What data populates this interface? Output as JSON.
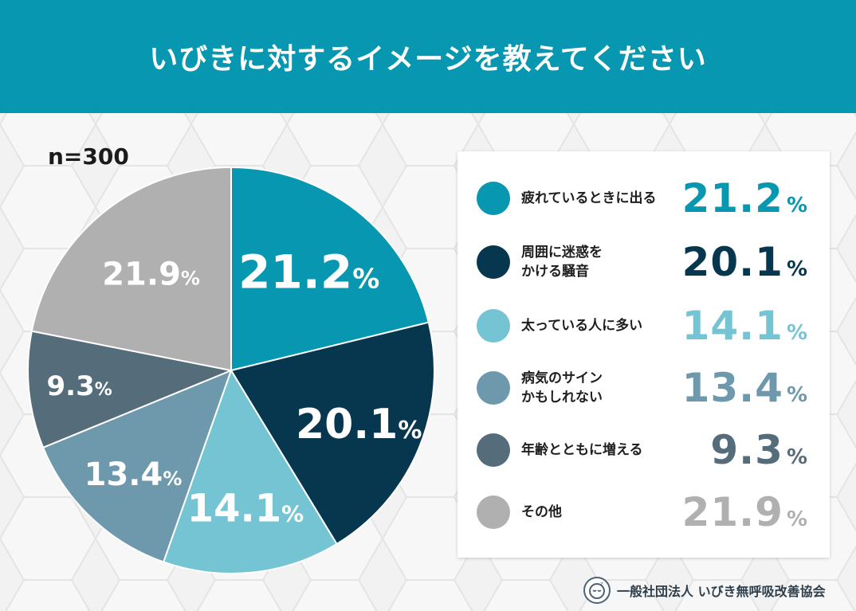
{
  "header": {
    "title": "いびきに対するイメージを教えてください"
  },
  "sample": {
    "label": "n=300"
  },
  "chart_data": {
    "type": "pie",
    "title": "いびきに対するイメージを教えてください",
    "unit": "%",
    "slices": [
      {
        "label": "疲れているときに出る",
        "value": 21.2,
        "color": "#0797b0",
        "label_color": "#0797b0"
      },
      {
        "label": "周囲に迷惑を\nかける騒音",
        "value": 20.1,
        "color": "#06374f",
        "label_color": "#06374f"
      },
      {
        "label": "太っている人に多い",
        "value": 14.1,
        "color": "#75c4d4",
        "label_color": "#75c4d4"
      },
      {
        "label": "病気のサイン\nかもしれない",
        "value": 13.4,
        "color": "#6e99ad",
        "label_color": "#6e99ad"
      },
      {
        "label": "年齢とともに増える",
        "value": 9.3,
        "color": "#556c7b",
        "label_color": "#556c7b"
      },
      {
        "label": "その他",
        "value": 21.9,
        "color": "#b0b0b0",
        "label_color": "#b0b0b0"
      }
    ],
    "value_labels": [
      "21.2",
      "20.1",
      "14.1",
      "13.4",
      "9.3",
      "21.9"
    ],
    "percent_sign": "%",
    "legend_position": "right"
  },
  "footer": {
    "organization": "一般社団法人 いびき無呼吸改善協会",
    "logo_icon": "sleeping-face-icon"
  }
}
